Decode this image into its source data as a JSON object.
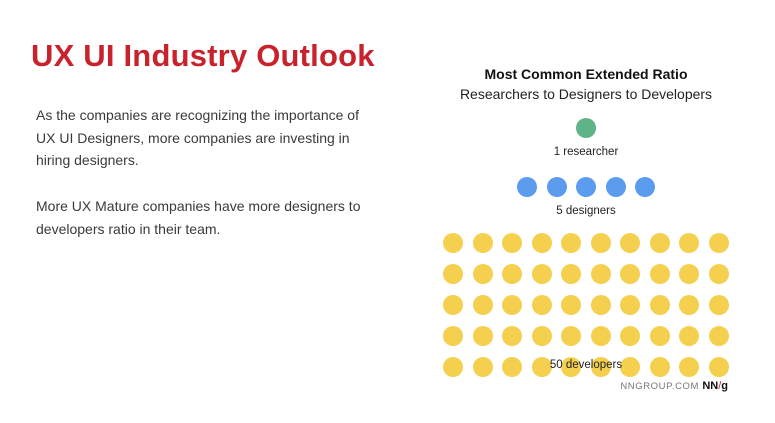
{
  "heading": "UX UI Industry Outlook",
  "paragraphs": [
    "As the companies are recognizing the importance of UX UI Designers, more companies are investing in hiring designers.",
    "More UX Mature companies have more designers to developers ratio in their team."
  ],
  "ratio": {
    "title": "Most Common Extended Ratio",
    "subtitle": "Researchers to Designers to Developers",
    "groups": [
      {
        "label": "1 researcher",
        "count": 1,
        "color": "#5fb386"
      },
      {
        "label": "5 designers",
        "count": 5,
        "color": "#5b9cee"
      },
      {
        "label": "50 developers",
        "count": 50,
        "color": "#f4d04e"
      }
    ]
  },
  "credit": {
    "site": "NNGROUP.COM",
    "logo_main": "NN",
    "logo_slash": "/",
    "logo_end": "g"
  }
}
